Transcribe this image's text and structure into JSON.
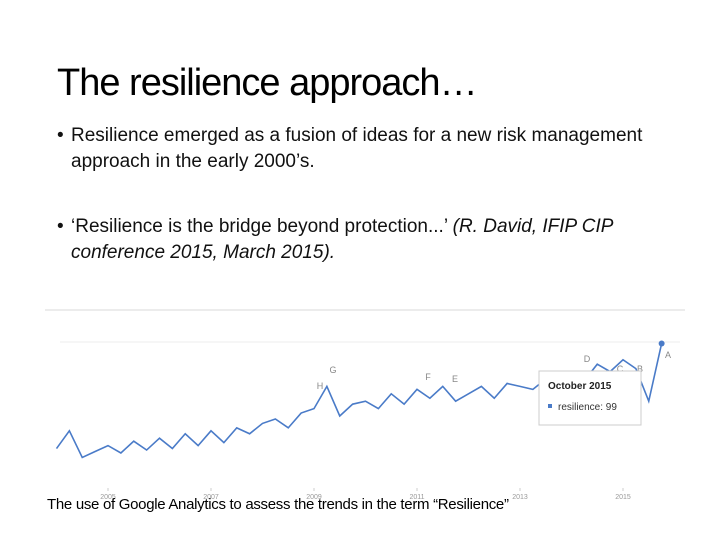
{
  "title": "The resilience approach…",
  "bullets": [
    {
      "text": "Resilience emerged as a fusion of ideas for a new risk management approach in the early 2000’s."
    },
    {
      "text": "‘Resilience is the bridge beyond protection...’ ",
      "italic": "(R. David, IFIP CIP conference 2015, March 2015)."
    }
  ],
  "caption": "The use of Google Analytics to assess the trends in the term  “Resilience”",
  "chart_data": {
    "type": "line",
    "x": [
      2004,
      2004.25,
      2004.5,
      2004.75,
      2005,
      2005.25,
      2005.5,
      2005.75,
      2006,
      2006.25,
      2006.5,
      2006.75,
      2007,
      2007.25,
      2007.5,
      2007.75,
      2008,
      2008.25,
      2008.5,
      2008.75,
      2009,
      2009.25,
      2009.5,
      2009.75,
      2010,
      2010.25,
      2010.5,
      2010.75,
      2011,
      2011.25,
      2011.5,
      2011.75,
      2012,
      2012.25,
      2012.5,
      2012.75,
      2013,
      2013.25,
      2013.5,
      2013.75,
      2014,
      2014.25,
      2014.5,
      2014.75,
      2015,
      2015.25,
      2015.5,
      2015.75
    ],
    "series": [
      {
        "color": "#4a7bc8",
        "values": [
          28,
          40,
          22,
          26,
          30,
          25,
          33,
          27,
          35,
          28,
          38,
          30,
          40,
          32,
          42,
          38,
          45,
          48,
          42,
          52,
          55,
          70,
          50,
          58,
          60,
          55,
          65,
          58,
          68,
          62,
          70,
          60,
          65,
          70,
          62,
          72,
          70,
          68,
          75,
          72,
          78,
          74,
          85,
          80,
          88,
          82,
          60,
          99
        ]
      }
    ],
    "xlim": [
      2004,
      2016
    ],
    "ylim": [
      0,
      100
    ],
    "xticks": [
      2005,
      2007,
      2009,
      2011,
      2013,
      2015
    ],
    "annotations": [
      "H",
      "G",
      "F",
      "E",
      "D",
      "C",
      "B",
      "A"
    ],
    "tooltip": {
      "title": "October 2015",
      "text": "resilience: 99"
    }
  }
}
